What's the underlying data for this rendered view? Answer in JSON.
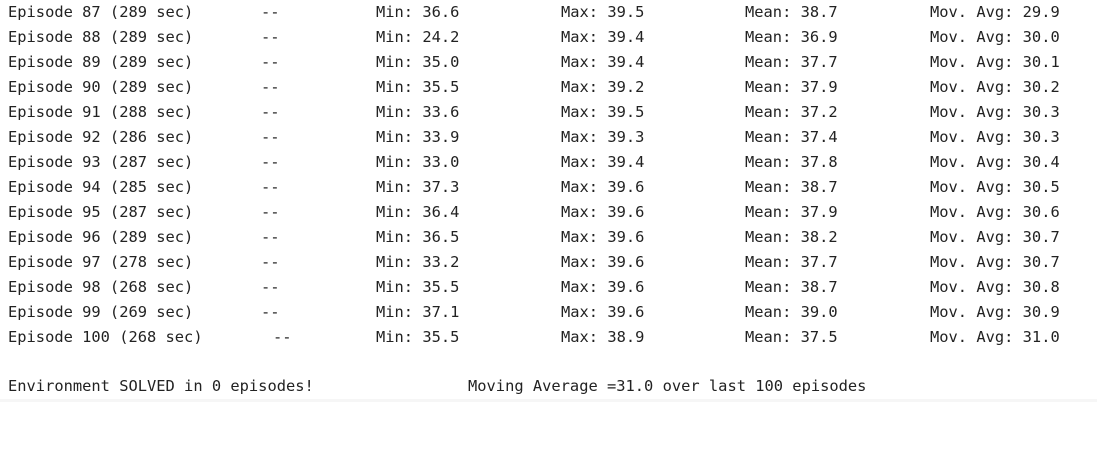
{
  "output": {
    "rows": [
      {
        "episode": "Episode 87 (289 sec)",
        "sep": "--",
        "min": "Min: 36.6",
        "max": "Max: 39.5",
        "mean": "Mean: 38.7",
        "mov": "Mov. Avg: 29.9"
      },
      {
        "episode": "Episode 88 (289 sec)",
        "sep": "--",
        "min": "Min: 24.2",
        "max": "Max: 39.4",
        "mean": "Mean: 36.9",
        "mov": "Mov. Avg: 30.0"
      },
      {
        "episode": "Episode 89 (289 sec)",
        "sep": "--",
        "min": "Min: 35.0",
        "max": "Max: 39.4",
        "mean": "Mean: 37.7",
        "mov": "Mov. Avg: 30.1"
      },
      {
        "episode": "Episode 90 (289 sec)",
        "sep": "--",
        "min": "Min: 35.5",
        "max": "Max: 39.2",
        "mean": "Mean: 37.9",
        "mov": "Mov. Avg: 30.2"
      },
      {
        "episode": "Episode 91 (288 sec)",
        "sep": "--",
        "min": "Min: 33.6",
        "max": "Max: 39.5",
        "mean": "Mean: 37.2",
        "mov": "Mov. Avg: 30.3"
      },
      {
        "episode": "Episode 92 (286 sec)",
        "sep": "--",
        "min": "Min: 33.9",
        "max": "Max: 39.3",
        "mean": "Mean: 37.4",
        "mov": "Mov. Avg: 30.3"
      },
      {
        "episode": "Episode 93 (287 sec)",
        "sep": "--",
        "min": "Min: 33.0",
        "max": "Max: 39.4",
        "mean": "Mean: 37.8",
        "mov": "Mov. Avg: 30.4"
      },
      {
        "episode": "Episode 94 (285 sec)",
        "sep": "--",
        "min": "Min: 37.3",
        "max": "Max: 39.6",
        "mean": "Mean: 38.7",
        "mov": "Mov. Avg: 30.5"
      },
      {
        "episode": "Episode 95 (287 sec)",
        "sep": "--",
        "min": "Min: 36.4",
        "max": "Max: 39.6",
        "mean": "Mean: 37.9",
        "mov": "Mov. Avg: 30.6"
      },
      {
        "episode": "Episode 96 (289 sec)",
        "sep": "--",
        "min": "Min: 36.5",
        "max": "Max: 39.6",
        "mean": "Mean: 38.2",
        "mov": "Mov. Avg: 30.7"
      },
      {
        "episode": "Episode 97 (278 sec)",
        "sep": "--",
        "min": "Min: 33.2",
        "max": "Max: 39.6",
        "mean": "Mean: 37.7",
        "mov": "Mov. Avg: 30.7"
      },
      {
        "episode": "Episode 98 (268 sec)",
        "sep": "--",
        "min": "Min: 35.5",
        "max": "Max: 39.6",
        "mean": "Mean: 38.7",
        "mov": "Mov. Avg: 30.8"
      },
      {
        "episode": "Episode 99 (269 sec)",
        "sep": "--",
        "min": "Min: 37.1",
        "max": "Max: 39.6",
        "mean": "Mean: 39.0",
        "mov": "Mov. Avg: 30.9"
      },
      {
        "episode": "Episode 100 (268 sec)",
        "sep": "--",
        "min": "Min: 35.5",
        "max": "Max: 38.9",
        "mean": "Mean: 37.5",
        "mov": "Mov. Avg: 31.0"
      }
    ],
    "summary": {
      "solved": "Environment SOLVED in 0 episodes!",
      "moving_average": "Moving Average =31.0 over last 100 episodes"
    }
  },
  "colors": {
    "text": "#222222",
    "background": "#ffffff"
  }
}
